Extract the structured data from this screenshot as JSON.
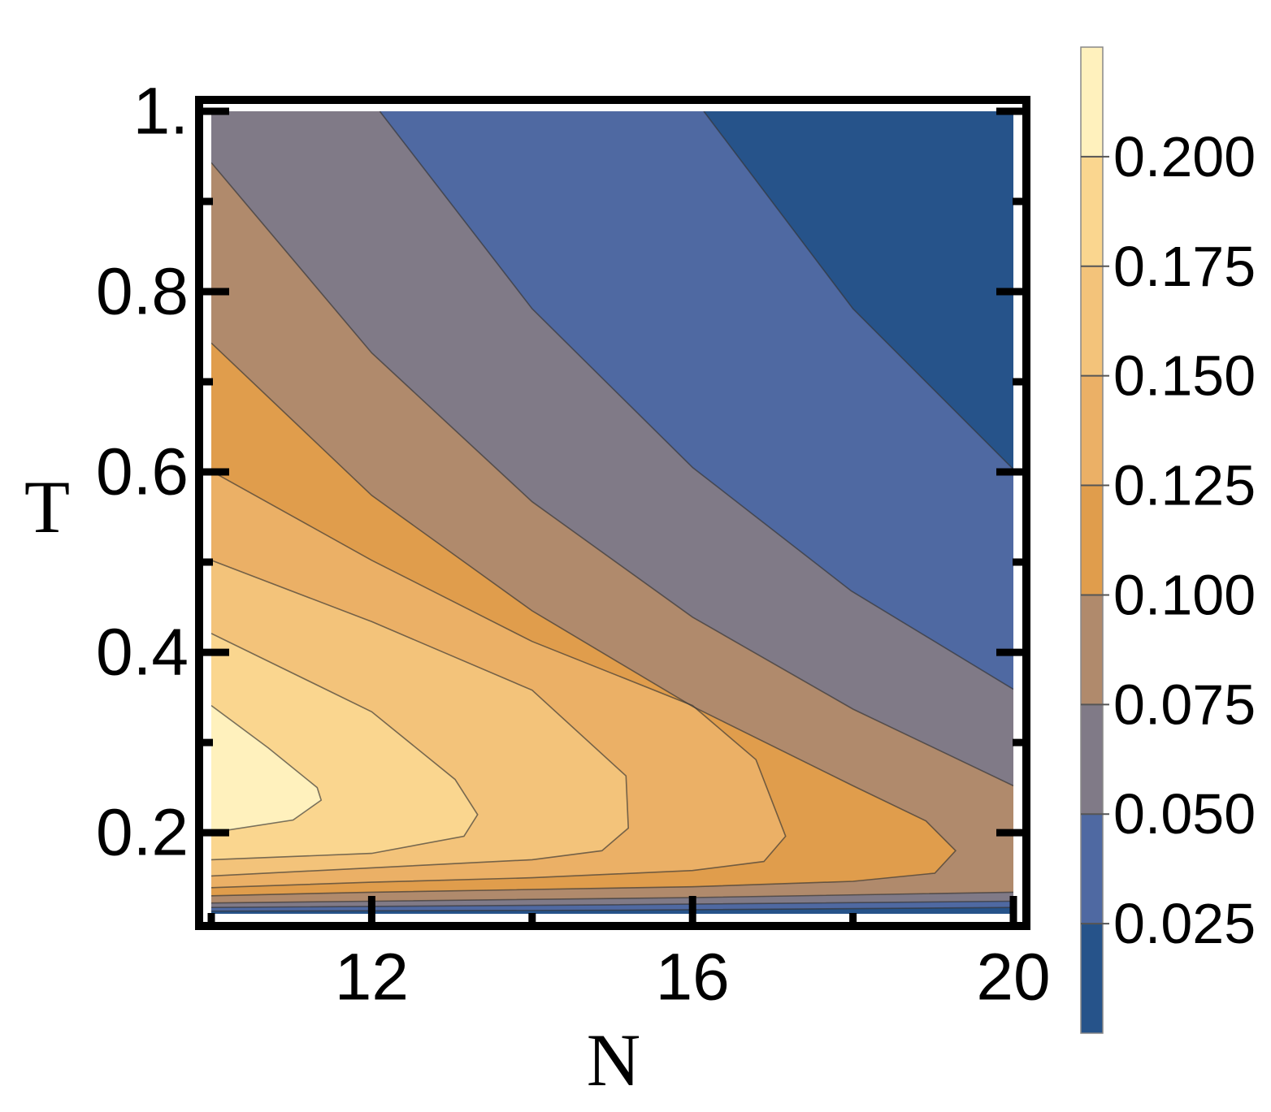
{
  "chart_data": {
    "type": "contour",
    "x_label": "N",
    "y_label": "T",
    "xlim": [
      10,
      20
    ],
    "ylim": [
      0.11,
      1.0
    ],
    "xticks": [
      12,
      16,
      20
    ],
    "xminor_ticks": [
      10,
      14,
      18
    ],
    "yticks": [
      0.2,
      0.4,
      0.6,
      0.8,
      {
        "value": 1,
        "label": "1."
      }
    ],
    "yminor_ticks": [
      0.3,
      0.5,
      0.7,
      0.9
    ],
    "colors": [
      "#26538a",
      "#4f69a2",
      "#807a87",
      "#b08a6c",
      "#e09d4c",
      "#ebb066",
      "#f3c37a",
      "#fad68f",
      "#fff1bd"
    ],
    "contours": [
      {
        "level": 0.025,
        "x": [
          16.14,
          18.0,
          20,
          null,
          20,
          15,
          10
        ],
        "y": [
          1.0,
          0.781,
          0.603,
          null,
          0.117,
          0.114,
          0.113
        ]
      },
      {
        "level": 0.05,
        "x": [
          12.1,
          14.0,
          16.0,
          17.98,
          20,
          null,
          20,
          15,
          10
        ],
        "y": [
          1.0,
          0.781,
          0.605,
          0.468,
          0.359,
          null,
          0.124,
          0.12,
          0.117
        ]
      },
      {
        "level": 0.075,
        "x": [
          10,
          12,
          14,
          16,
          18,
          20,
          null,
          20,
          16,
          12,
          10
        ],
        "y": [
          0.943,
          0.732,
          0.567,
          0.439,
          0.337,
          0.252,
          null,
          0.134,
          0.128,
          0.124,
          0.122
        ]
      },
      {
        "level": 0.1,
        "x": [
          10,
          12,
          14,
          16,
          18,
          18.91,
          19.28,
          19.02,
          18,
          16,
          12,
          10
        ],
        "y": [
          0.743,
          0.574,
          0.446,
          0.34,
          0.252,
          0.213,
          0.18,
          0.155,
          0.146,
          0.14,
          0.134,
          0.13
        ]
      },
      {
        "level": 0.125,
        "x": [
          10,
          12,
          14,
          16,
          16.79,
          17.16,
          16.89,
          16,
          14,
          12,
          10
        ],
        "y": [
          0.601,
          0.502,
          0.412,
          0.341,
          0.281,
          0.196,
          0.168,
          0.158,
          0.15,
          0.145,
          0.139
        ]
      },
      {
        "level": 0.15,
        "x": [
          10,
          12,
          14,
          15.17,
          15.2,
          14.87,
          14,
          12,
          10
        ],
        "y": [
          0.502,
          0.434,
          0.358,
          0.263,
          0.205,
          0.18,
          0.17,
          0.161,
          0.152
        ]
      },
      {
        "level": 0.175,
        "x": [
          10,
          12,
          13.04,
          13.32,
          13.15,
          12,
          10
        ],
        "y": [
          0.421,
          0.334,
          0.259,
          0.22,
          0.196,
          0.177,
          0.17
        ]
      },
      {
        "level": 0.2,
        "x": [
          10,
          10.71,
          11.32,
          11.37,
          11.02,
          10
        ],
        "y": [
          0.341,
          0.294,
          0.25,
          0.236,
          0.214,
          0.2
        ]
      }
    ],
    "colorbar": {
      "lim": [
        0,
        0.225
      ],
      "ticks": [
        {
          "value": 0.025,
          "label": "0.025"
        },
        {
          "value": 0.05,
          "label": "0.050"
        },
        {
          "value": 0.075,
          "label": "0.075"
        },
        {
          "value": 0.1,
          "label": "0.100"
        },
        {
          "value": 0.125,
          "label": "0.125"
        },
        {
          "value": 0.15,
          "label": "0.150"
        },
        {
          "value": 0.175,
          "label": "0.175"
        },
        {
          "value": 0.2,
          "label": "0.200"
        }
      ]
    }
  }
}
